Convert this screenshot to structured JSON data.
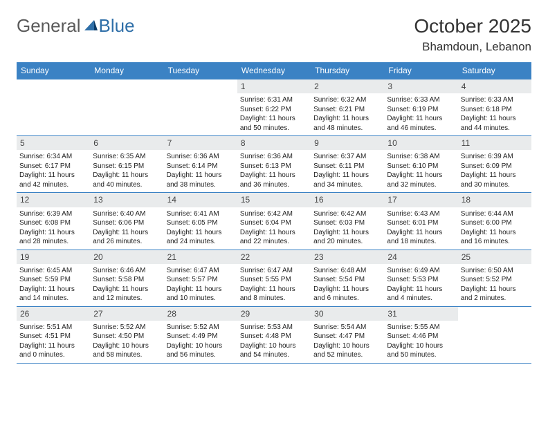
{
  "logo": {
    "part1": "General",
    "part2": "Blue"
  },
  "title": "October 2025",
  "location": "Bhamdoun, Lebanon",
  "colors": {
    "header_bg": "#3b82c4",
    "header_text": "#ffffff",
    "daynum_bg": "#e9ebec",
    "rule": "#3b82c4",
    "logo_gray": "#5a5a5a",
    "logo_blue": "#2f6fa8"
  },
  "weekdays": [
    "Sunday",
    "Monday",
    "Tuesday",
    "Wednesday",
    "Thursday",
    "Friday",
    "Saturday"
  ],
  "weeks": [
    [
      {
        "n": "",
        "lines": []
      },
      {
        "n": "",
        "lines": []
      },
      {
        "n": "",
        "lines": []
      },
      {
        "n": "1",
        "lines": [
          "Sunrise: 6:31 AM",
          "Sunset: 6:22 PM",
          "Daylight: 11 hours and 50 minutes."
        ]
      },
      {
        "n": "2",
        "lines": [
          "Sunrise: 6:32 AM",
          "Sunset: 6:21 PM",
          "Daylight: 11 hours and 48 minutes."
        ]
      },
      {
        "n": "3",
        "lines": [
          "Sunrise: 6:33 AM",
          "Sunset: 6:19 PM",
          "Daylight: 11 hours and 46 minutes."
        ]
      },
      {
        "n": "4",
        "lines": [
          "Sunrise: 6:33 AM",
          "Sunset: 6:18 PM",
          "Daylight: 11 hours and 44 minutes."
        ]
      }
    ],
    [
      {
        "n": "5",
        "lines": [
          "Sunrise: 6:34 AM",
          "Sunset: 6:17 PM",
          "Daylight: 11 hours and 42 minutes."
        ]
      },
      {
        "n": "6",
        "lines": [
          "Sunrise: 6:35 AM",
          "Sunset: 6:15 PM",
          "Daylight: 11 hours and 40 minutes."
        ]
      },
      {
        "n": "7",
        "lines": [
          "Sunrise: 6:36 AM",
          "Sunset: 6:14 PM",
          "Daylight: 11 hours and 38 minutes."
        ]
      },
      {
        "n": "8",
        "lines": [
          "Sunrise: 6:36 AM",
          "Sunset: 6:13 PM",
          "Daylight: 11 hours and 36 minutes."
        ]
      },
      {
        "n": "9",
        "lines": [
          "Sunrise: 6:37 AM",
          "Sunset: 6:11 PM",
          "Daylight: 11 hours and 34 minutes."
        ]
      },
      {
        "n": "10",
        "lines": [
          "Sunrise: 6:38 AM",
          "Sunset: 6:10 PM",
          "Daylight: 11 hours and 32 minutes."
        ]
      },
      {
        "n": "11",
        "lines": [
          "Sunrise: 6:39 AM",
          "Sunset: 6:09 PM",
          "Daylight: 11 hours and 30 minutes."
        ]
      }
    ],
    [
      {
        "n": "12",
        "lines": [
          "Sunrise: 6:39 AM",
          "Sunset: 6:08 PM",
          "Daylight: 11 hours and 28 minutes."
        ]
      },
      {
        "n": "13",
        "lines": [
          "Sunrise: 6:40 AM",
          "Sunset: 6:06 PM",
          "Daylight: 11 hours and 26 minutes."
        ]
      },
      {
        "n": "14",
        "lines": [
          "Sunrise: 6:41 AM",
          "Sunset: 6:05 PM",
          "Daylight: 11 hours and 24 minutes."
        ]
      },
      {
        "n": "15",
        "lines": [
          "Sunrise: 6:42 AM",
          "Sunset: 6:04 PM",
          "Daylight: 11 hours and 22 minutes."
        ]
      },
      {
        "n": "16",
        "lines": [
          "Sunrise: 6:42 AM",
          "Sunset: 6:03 PM",
          "Daylight: 11 hours and 20 minutes."
        ]
      },
      {
        "n": "17",
        "lines": [
          "Sunrise: 6:43 AM",
          "Sunset: 6:01 PM",
          "Daylight: 11 hours and 18 minutes."
        ]
      },
      {
        "n": "18",
        "lines": [
          "Sunrise: 6:44 AM",
          "Sunset: 6:00 PM",
          "Daylight: 11 hours and 16 minutes."
        ]
      }
    ],
    [
      {
        "n": "19",
        "lines": [
          "Sunrise: 6:45 AM",
          "Sunset: 5:59 PM",
          "Daylight: 11 hours and 14 minutes."
        ]
      },
      {
        "n": "20",
        "lines": [
          "Sunrise: 6:46 AM",
          "Sunset: 5:58 PM",
          "Daylight: 11 hours and 12 minutes."
        ]
      },
      {
        "n": "21",
        "lines": [
          "Sunrise: 6:47 AM",
          "Sunset: 5:57 PM",
          "Daylight: 11 hours and 10 minutes."
        ]
      },
      {
        "n": "22",
        "lines": [
          "Sunrise: 6:47 AM",
          "Sunset: 5:55 PM",
          "Daylight: 11 hours and 8 minutes."
        ]
      },
      {
        "n": "23",
        "lines": [
          "Sunrise: 6:48 AM",
          "Sunset: 5:54 PM",
          "Daylight: 11 hours and 6 minutes."
        ]
      },
      {
        "n": "24",
        "lines": [
          "Sunrise: 6:49 AM",
          "Sunset: 5:53 PM",
          "Daylight: 11 hours and 4 minutes."
        ]
      },
      {
        "n": "25",
        "lines": [
          "Sunrise: 6:50 AM",
          "Sunset: 5:52 PM",
          "Daylight: 11 hours and 2 minutes."
        ]
      }
    ],
    [
      {
        "n": "26",
        "lines": [
          "Sunrise: 5:51 AM",
          "Sunset: 4:51 PM",
          "Daylight: 11 hours and 0 minutes."
        ]
      },
      {
        "n": "27",
        "lines": [
          "Sunrise: 5:52 AM",
          "Sunset: 4:50 PM",
          "Daylight: 10 hours and 58 minutes."
        ]
      },
      {
        "n": "28",
        "lines": [
          "Sunrise: 5:52 AM",
          "Sunset: 4:49 PM",
          "Daylight: 10 hours and 56 minutes."
        ]
      },
      {
        "n": "29",
        "lines": [
          "Sunrise: 5:53 AM",
          "Sunset: 4:48 PM",
          "Daylight: 10 hours and 54 minutes."
        ]
      },
      {
        "n": "30",
        "lines": [
          "Sunrise: 5:54 AM",
          "Sunset: 4:47 PM",
          "Daylight: 10 hours and 52 minutes."
        ]
      },
      {
        "n": "31",
        "lines": [
          "Sunrise: 5:55 AM",
          "Sunset: 4:46 PM",
          "Daylight: 10 hours and 50 minutes."
        ]
      },
      {
        "n": "",
        "lines": []
      }
    ]
  ]
}
